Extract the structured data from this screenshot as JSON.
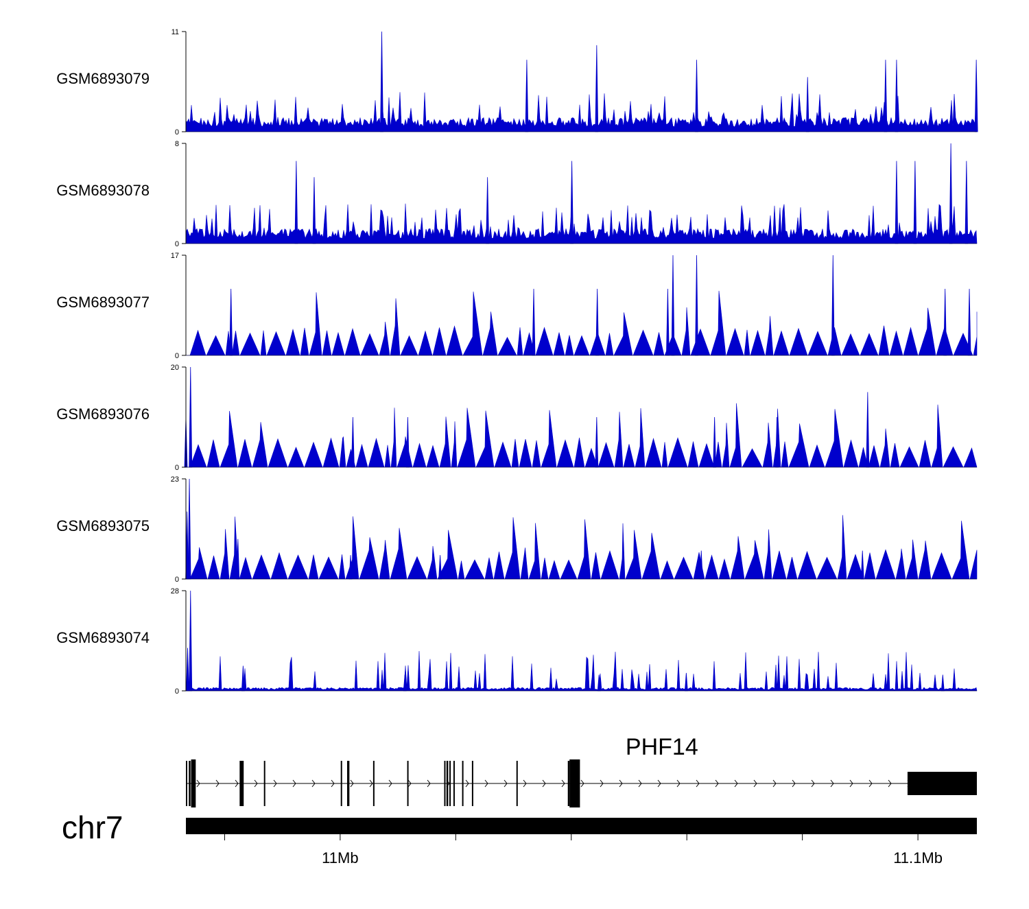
{
  "chart_data": {
    "type": "area",
    "title": "",
    "chromosome": "chr7",
    "gene": {
      "name": "PHF14",
      "strand": "+"
    },
    "xlim_mb": [
      10.9733,
      11.1102
    ],
    "genome_axis": {
      "labels": [
        {
          "text": "11Mb",
          "value_mb": 11.0
        },
        {
          "text": "11.1Mb",
          "value_mb": 11.1
        }
      ],
      "minor_ticks_mb": [
        10.98,
        11.02,
        11.04,
        11.06,
        11.08
      ]
    },
    "tracks": [
      {
        "name": "GSM6893079",
        "ylim": [
          0,
          11
        ],
        "ymax_label": "11",
        "ymin_label": "0",
        "color": "#0000cc",
        "profile": "dense",
        "baseline": 1.3,
        "spike_every": 9,
        "peaks": [
          [
            11.0072,
            11
          ],
          [
            11.0444,
            9.5
          ],
          [
            11.0323,
            7.9
          ],
          [
            11.0617,
            7.9
          ],
          [
            11.0944,
            7.9
          ],
          [
            11.0963,
            7.9
          ],
          [
            11.1101,
            7.9
          ],
          [
            11.0809,
            6
          ]
        ]
      },
      {
        "name": "GSM6893078",
        "ylim": [
          0,
          8
        ],
        "ymax_label": "8",
        "ymin_label": "0",
        "color": "#0000cc",
        "profile": "dense",
        "baseline": 1.0,
        "spike_every": 7,
        "peaks": [
          [
            11.1057,
            8
          ],
          [
            11.0401,
            6.6
          ],
          [
            10.9924,
            6.6
          ],
          [
            11.0963,
            6.6
          ],
          [
            11.0995,
            6.6
          ],
          [
            11.1084,
            6.6
          ],
          [
            10.9955,
            5.3
          ],
          [
            11.0255,
            5.3
          ]
        ]
      },
      {
        "name": "GSM6893077",
        "ylim": [
          0,
          17
        ],
        "ymax_label": "17",
        "ymin_label": "0",
        "color": "#0000cc",
        "profile": "sparse",
        "baseline": 0,
        "spike_every": 3,
        "peaks": [
          [
            11.0576,
            17
          ],
          [
            11.0617,
            17
          ],
          [
            11.0853,
            17
          ],
          [
            11.0567,
            11.3
          ],
          [
            11.0445,
            11.3
          ],
          [
            11.0335,
            11.3
          ],
          [
            10.9811,
            11.3
          ],
          [
            11.1047,
            11.3
          ],
          [
            11.1089,
            11.3
          ]
        ]
      },
      {
        "name": "GSM6893076",
        "ylim": [
          0,
          20
        ],
        "ymax_label": "20",
        "ymin_label": "0",
        "color": "#0000cc",
        "profile": "sparse",
        "baseline": 0,
        "spike_every": 3,
        "peaks": [
          [
            10.9741,
            20
          ],
          [
            11.0913,
            15
          ],
          [
            10.9733,
            10
          ],
          [
            11.0022,
            10
          ],
          [
            11.0117,
            10
          ],
          [
            11.0444,
            10
          ],
          [
            11.0648,
            10
          ],
          [
            11.0756,
            10
          ]
        ]
      },
      {
        "name": "GSM6893075",
        "ylim": [
          0,
          23
        ],
        "ymax_label": "23",
        "ymin_label": "0",
        "color": "#0000cc",
        "profile": "sparse",
        "baseline": 0,
        "spike_every": 3,
        "peaks": [
          [
            10.9739,
            23
          ],
          [
            10.9735,
            15.5
          ],
          [
            11.0173,
            5.5
          ],
          [
            11.0018,
            5.5
          ],
          [
            10.9823,
            9.2
          ],
          [
            11.0625,
            6.5
          ],
          [
            11.0904,
            6.5
          ]
        ]
      },
      {
        "name": "GSM6893074",
        "ylim": [
          0,
          28
        ],
        "ymax_label": "28",
        "ymin_label": "0",
        "color": "#0000cc",
        "profile": "dense",
        "baseline": 0.8,
        "spike_every": 8,
        "peaks": [
          [
            10.9741,
            28
          ],
          [
            10.9736,
            12
          ],
          [
            11.0599,
            5
          ],
          [
            11.0112,
            4.5
          ],
          [
            11.0448,
            4.5
          ],
          [
            11.1043,
            4.5
          ],
          [
            10.9832,
            7
          ]
        ]
      }
    ],
    "gene_model": {
      "exons_mb": [
        [
          10.9733,
          10.9734
        ],
        [
          10.9738,
          10.9741
        ],
        [
          10.9742,
          10.9743
        ],
        [
          10.9742,
          10.975
        ],
        [
          10.9826,
          10.9833
        ],
        [
          10.9868,
          10.987
        ],
        [
          11.0001,
          11.0003
        ],
        [
          11.0012,
          11.0016
        ],
        [
          11.0057,
          11.0059
        ],
        [
          11.0116,
          11.0118
        ],
        [
          11.018,
          11.0182
        ],
        [
          11.0184,
          11.0187
        ],
        [
          11.0189,
          11.0191
        ],
        [
          11.0196,
          11.0198
        ],
        [
          11.0211,
          11.0213
        ],
        [
          11.0228,
          11.023
        ],
        [
          11.0305,
          11.0307
        ],
        [
          11.0394,
          11.0397
        ],
        [
          11.0397,
          11.0415
        ],
        [
          11.0982,
          11.1102
        ]
      ]
    }
  }
}
